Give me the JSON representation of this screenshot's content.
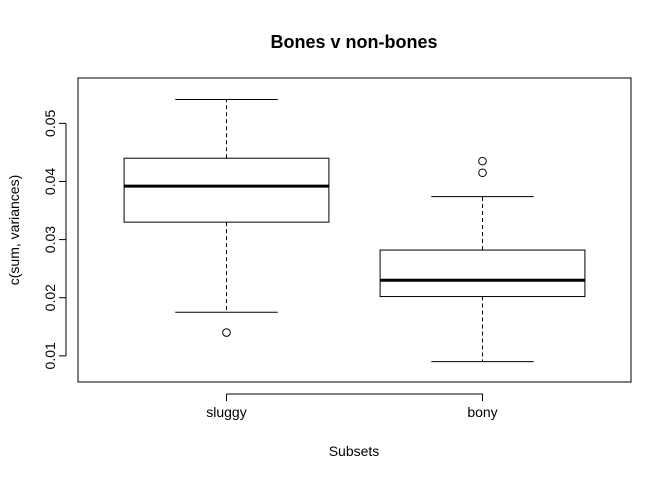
{
  "chart_data": {
    "type": "boxplot",
    "title": "Bones v non-bones",
    "xlabel": "Subsets",
    "ylabel": "c(sum, variances)",
    "ylim": [
      0.0055,
      0.0578
    ],
    "yticks": [
      {
        "value": 0.01,
        "label": "0.01"
      },
      {
        "value": 0.02,
        "label": "0.02"
      },
      {
        "value": 0.03,
        "label": "0.03"
      },
      {
        "value": 0.04,
        "label": "0.04"
      },
      {
        "value": 0.05,
        "label": "0.05"
      }
    ],
    "grid": false,
    "boxes": [
      {
        "label": "sluggy",
        "whisker_low": 0.0175,
        "q1": 0.033,
        "median": 0.0392,
        "q3": 0.044,
        "whisker_high": 0.0541,
        "outliers": [
          0.014
        ]
      },
      {
        "label": "bony",
        "whisker_low": 0.009,
        "q1": 0.0202,
        "median": 0.023,
        "q3": 0.0282,
        "whisker_high": 0.0374,
        "outliers": [
          0.0415,
          0.0435
        ]
      }
    ]
  }
}
